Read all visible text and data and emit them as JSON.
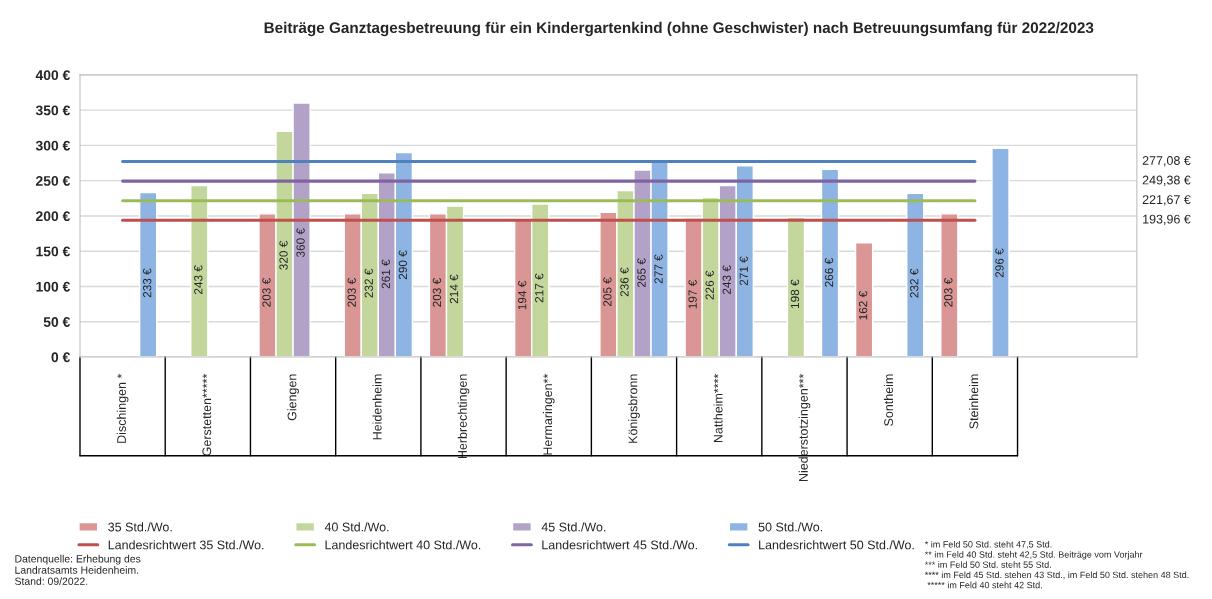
{
  "chart_data": {
    "type": "bar",
    "title": "Beiträge Ganztagesbetreuung für ein Kindergartenkind (ohne Geschwister) nach Betreuungsumfang für 2022/2023",
    "categories": [
      "Dischingen *",
      "Gerstetten*****",
      "Giengen",
      "Heidenheim",
      "Herbrechtingen",
      "Hermaringen**",
      "Königsbronn",
      "Nattheim****",
      "Niederstotzingen***",
      "Sontheim",
      "Steinheim"
    ],
    "series": [
      {
        "name": "35 Std./Wo.",
        "color": "#d99694",
        "values": [
          null,
          null,
          203,
          203,
          203,
          194,
          205,
          197,
          null,
          162,
          203
        ],
        "value_labels": [
          null,
          null,
          "203 €",
          "203 €",
          "203 €",
          "194 €",
          "205 €",
          "197 €",
          null,
          "162 €",
          "203 €"
        ]
      },
      {
        "name": "40 Std./Wo.",
        "color": "#c3d69b",
        "values": [
          null,
          243,
          320,
          232,
          214,
          217,
          236,
          226,
          198,
          null,
          null
        ],
        "value_labels": [
          null,
          "243 €",
          "320 €",
          "232 €",
          "214 €",
          "217 €",
          "236 €",
          "226 €",
          "198 €",
          null,
          null
        ]
      },
      {
        "name": "45 Std./Wo.",
        "color": "#b3a2c7",
        "values": [
          null,
          null,
          360,
          261,
          null,
          null,
          265,
          243,
          null,
          null,
          null
        ],
        "value_labels": [
          null,
          null,
          "360 €",
          "261 €",
          null,
          null,
          "265 €",
          "243 €",
          null,
          null,
          null
        ]
      },
      {
        "name": "50 Std./Wo.",
        "color": "#8eb4e3",
        "values": [
          233,
          null,
          null,
          290,
          null,
          null,
          277,
          271,
          266,
          232,
          296
        ],
        "value_labels": [
          "233 €",
          null,
          null,
          "290 €",
          null,
          null,
          "277 €",
          "271 €",
          "266 €",
          "232 €",
          "296 €"
        ]
      },
      {
        "type": "line",
        "name": "Landesrichtwert 35 Std./Wo.",
        "color": "#c0504d",
        "values": [
          193.96,
          193.96,
          193.96,
          193.96,
          193.96,
          193.96,
          193.96,
          193.96,
          193.96,
          193.96,
          193.96
        ]
      },
      {
        "type": "line",
        "name": "Landesrichtwert 40 Std./Wo.",
        "color": "#9bbb59",
        "values": [
          221.67,
          221.67,
          221.67,
          221.67,
          221.67,
          221.67,
          221.67,
          221.67,
          221.67,
          221.67,
          221.67
        ]
      },
      {
        "type": "line",
        "name": "Landesrichtwert 45 Std./Wo.",
        "color": "#8064a2",
        "values": [
          249.38,
          249.38,
          249.38,
          249.38,
          249.38,
          249.38,
          249.38,
          249.38,
          249.38,
          249.38,
          249.38
        ]
      },
      {
        "type": "line",
        "name": "Landesrichtwert 50 Std./Wo.",
        "color": "#4f81bd",
        "values": [
          277.08,
          277.08,
          277.08,
          277.08,
          277.08,
          277.08,
          277.08,
          277.08,
          277.08,
          277.08,
          277.08
        ]
      }
    ],
    "ylim": [
      0,
      400
    ],
    "yticks": [
      {
        "value": 0,
        "label": "0 €"
      },
      {
        "value": 50,
        "label": "50 €"
      },
      {
        "value": 100,
        "label": "100 €"
      },
      {
        "value": 150,
        "label": "150 €"
      },
      {
        "value": 200,
        "label": "200 €"
      },
      {
        "value": 250,
        "label": "250 €"
      },
      {
        "value": 300,
        "label": "300 €"
      },
      {
        "value": 350,
        "label": "350 €"
      },
      {
        "value": 400,
        "label": "400 €"
      }
    ],
    "grid": "y",
    "legend": "bottom",
    "marker": "none",
    "line_style": "solid",
    "annotations": [
      "277,08 €",
      "249,38 €",
      "221,67 €",
      "193,96 €",
      "Datenquelle: Erhebung des\nLandratsamts Heidenheim.\nStand: 09/2022.",
      "* im Feld 50 Std. steht 47,5 Std.",
      "** im Feld 40 Std. steht 42,5 Std. Beiträge vom Vorjahr",
      "*** im Feld 50 Std. steht 55 Std.",
      "**** im Feld 45 Std. stehen 43 Std., im Feld 50 Std. stehen 48 Std.",
      " ***** im Feld 40 steht 42 Std."
    ]
  }
}
